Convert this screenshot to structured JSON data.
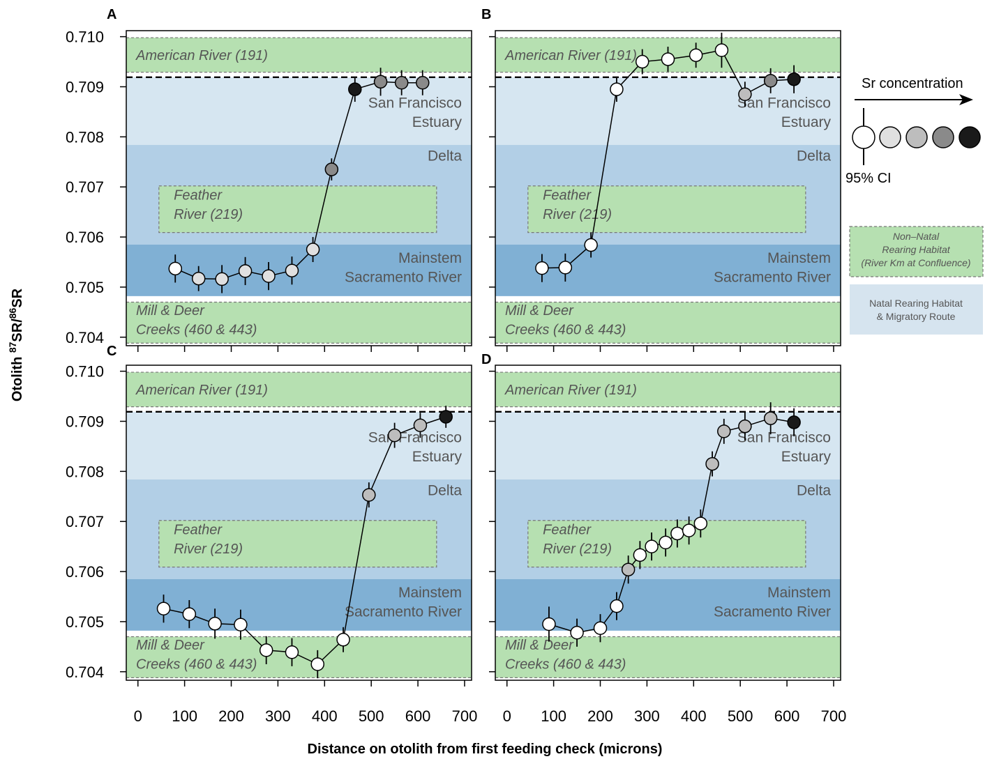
{
  "colors": {
    "green": "#b6e0b1",
    "sf_estuary": "#d6e6f1",
    "delta": "#b2cfe6",
    "mainstem": "#80b0d4",
    "natal_legend": "#d6e4ef",
    "sr_levels": [
      "#ffffff",
      "#e0e0e0",
      "#bdbdbd",
      "#8a8a8a",
      "#1a1a1a"
    ]
  },
  "axes": {
    "x_title": "Distance on otolith from first feeding check (microns)",
    "y_title_main": "Otolith ",
    "y_sup1": "87",
    "y_mid": "SR/",
    "y_sup2": "86",
    "y_tail": "SR",
    "xlim": [
      -25,
      715
    ],
    "ylim": [
      0.70383,
      0.71012
    ],
    "x_ticks": [
      0,
      100,
      200,
      300,
      400,
      500,
      600,
      700
    ],
    "x_tick_labels": [
      "0",
      "100",
      "200",
      "300",
      "400",
      "500",
      "600",
      "700"
    ],
    "y_ticks": [
      0.704,
      0.705,
      0.706,
      0.707,
      0.708,
      0.709,
      0.71
    ],
    "y_tick_labels": [
      "0.704",
      "0.705",
      "0.706",
      "0.707",
      "0.708",
      "0.709",
      "0.710"
    ]
  },
  "regions": {
    "american": "American River (191)",
    "feather_1": "Feather",
    "feather_2": "River (219)",
    "sf_1": "San Francisco",
    "sf_2": "Estuary",
    "delta": "Delta",
    "mainstem_1": "Mainstem",
    "mainstem_2": "Sacramento River",
    "mill_1": "Mill & Deer",
    "mill_2": "Creeks (460 & 443)"
  },
  "legend": {
    "sr_title": "Sr concentration",
    "ci_label": "95% CI",
    "nonnatal_1": "Non–Natal",
    "nonnatal_2": "Rearing Habitat",
    "nonnatal_3": "(River Km at Confluence)",
    "natal_1": "Natal Rearing Habitat",
    "natal_2": "& Migratory Route"
  },
  "chart_data": [
    {
      "panel": "A",
      "type": "line",
      "x": [
        80,
        130,
        180,
        230,
        280,
        330,
        375,
        415,
        465,
        520,
        565,
        610
      ],
      "y": [
        0.70537,
        0.70517,
        0.70516,
        0.70532,
        0.70522,
        0.70533,
        0.70575,
        0.70735,
        0.70895,
        0.7091,
        0.70908,
        0.70908
      ],
      "ci": [
        0.00028,
        0.00025,
        0.00028,
        0.00028,
        0.00028,
        0.00028,
        0.00025,
        0.00022,
        0.00025,
        0.00028,
        0.00025,
        0.00025
      ],
      "sr_level": [
        0,
        1,
        1,
        1,
        1,
        1,
        1,
        3,
        4,
        3,
        3,
        3
      ]
    },
    {
      "panel": "B",
      "type": "line",
      "x": [
        75,
        125,
        180,
        235,
        290,
        345,
        405,
        460,
        510,
        565,
        615
      ],
      "y": [
        0.70538,
        0.70539,
        0.70584,
        0.70895,
        0.7095,
        0.70955,
        0.70963,
        0.70973,
        0.70885,
        0.70912,
        0.70915
      ],
      "ci": [
        0.00028,
        0.00028,
        0.00025,
        0.00025,
        0.00025,
        0.00025,
        0.00025,
        0.00035,
        0.00025,
        0.00025,
        0.00028
      ],
      "sr_level": [
        0,
        0,
        0,
        0,
        0,
        0,
        0,
        0,
        2,
        3,
        4
      ]
    },
    {
      "panel": "C",
      "type": "line",
      "x": [
        55,
        110,
        165,
        220,
        275,
        330,
        385,
        440,
        495,
        550,
        605,
        660
      ],
      "y": [
        0.70526,
        0.70515,
        0.70496,
        0.70494,
        0.70443,
        0.70439,
        0.70415,
        0.70464,
        0.70753,
        0.70872,
        0.70892,
        0.70909
      ],
      "ci": [
        0.00028,
        0.00028,
        0.0003,
        0.0003,
        0.00028,
        0.00028,
        0.00028,
        0.00025,
        0.00025,
        0.00025,
        0.00025,
        0.00022
      ],
      "sr_level": [
        0,
        0,
        0,
        0,
        0,
        0,
        0,
        0,
        2,
        2,
        2,
        4
      ]
    },
    {
      "panel": "D",
      "type": "line",
      "x": [
        90,
        150,
        200,
        235,
        260,
        285,
        310,
        340,
        365,
        390,
        415,
        440,
        465,
        510,
        565,
        615
      ],
      "y": [
        0.70495,
        0.70478,
        0.70487,
        0.70531,
        0.70604,
        0.70633,
        0.7065,
        0.70658,
        0.70676,
        0.70682,
        0.70696,
        0.70815,
        0.7088,
        0.7089,
        0.70906,
        0.70898
      ],
      "ci": [
        0.00035,
        0.00028,
        0.00028,
        0.00028,
        0.00028,
        0.00028,
        0.00028,
        0.00028,
        0.00028,
        0.00028,
        0.00028,
        0.00025,
        0.00025,
        0.00028,
        0.00032,
        0.00028
      ],
      "sr_level": [
        0,
        0,
        0,
        0,
        2,
        0,
        0,
        0,
        0,
        0,
        0,
        2,
        2,
        2,
        2,
        4
      ]
    }
  ]
}
